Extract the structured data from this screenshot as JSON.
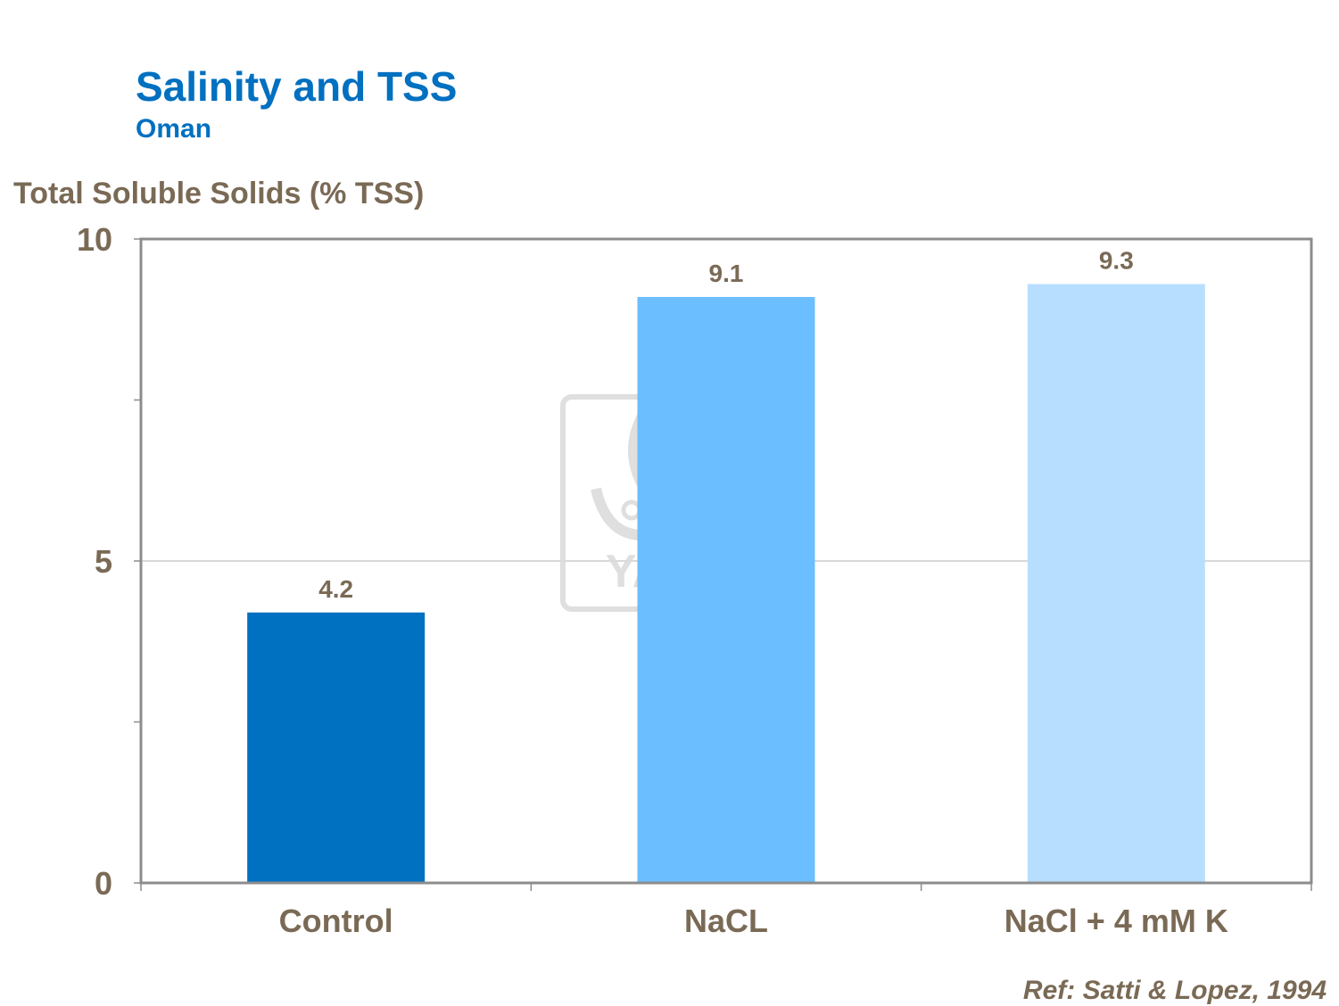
{
  "chart_data": {
    "type": "bar",
    "title": "Salinity and TSS",
    "subtitle": "Oman",
    "ylabel": "Total Soluble Solids (% TSS)",
    "xlabel": "",
    "categories": [
      "Control",
      "NaCL",
      "NaCl + 4 mM K"
    ],
    "values": [
      4.2,
      9.1,
      9.3
    ],
    "value_labels": [
      "4.2",
      "9.1",
      "9.3"
    ],
    "colors": [
      "#0070c0",
      "#6bbeff",
      "#b8deff"
    ],
    "ylim": [
      0,
      10
    ],
    "yticks": [
      0,
      5,
      10
    ],
    "ytick_labels": [
      "0",
      "5",
      "10"
    ],
    "grid": true,
    "legend": "none"
  },
  "reference": "Ref: Satti & Lopez, 1994",
  "watermark": {
    "icon": "yara-logo-icon",
    "text": "YARA"
  }
}
